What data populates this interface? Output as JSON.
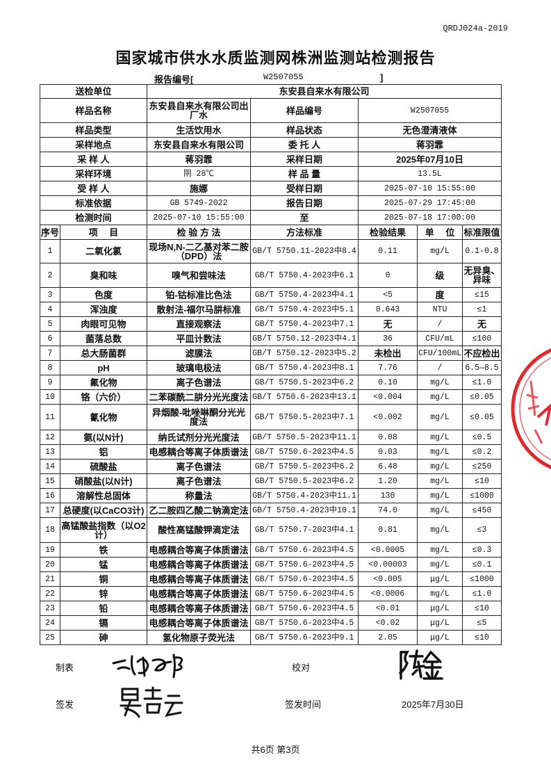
{
  "doc_code": "QRDJ024a-2019",
  "title": "国家城市供水水质监测网株洲监测站检测报告",
  "report_no": {
    "label": "报告编号[",
    "value": "W2507055",
    "close": "]"
  },
  "info": {
    "sender_label": "送检单位",
    "sender": "东安县自来水有限公司",
    "sample_name_label": "样品名称",
    "sample_name": "东安县自来水有限公司出厂水",
    "sample_no_label": "样品编号",
    "sample_no": "W2507055",
    "sample_type_label": "样品类型",
    "sample_type": "生活饮用水",
    "sample_state_label": "样品状态",
    "sample_state": "无色澄清液体",
    "site_label": "采样地点",
    "site": "东安县自来水有限公司",
    "client_label": "委 托 人",
    "client": "蒋羽霏",
    "sampler_label": "采 样 人",
    "sampler": "蒋羽霏",
    "sample_date_label": "采样日期",
    "sample_date": "2025年07月10日",
    "env_label": "采样环境",
    "env": "阴 28℃",
    "qty_label": "样 品 量",
    "qty": "13.5L",
    "receiver_label": "受 样 人",
    "receiver": "施娜",
    "receive_date_label": "受样日期",
    "receive_date": "2025-07-10 15:55:00",
    "standard_label": "标准依据",
    "standard": "GB 5749-2022",
    "report_date_label": "报告日期",
    "report_date": "2025-07-29 17:45:00",
    "test_time_label": "检测时间",
    "test_start": "2025-07-10 15:55:00",
    "to": "至",
    "test_end": "2025-07-18 17:00:00"
  },
  "columns": [
    "序号",
    "项　 目",
    "检 验 方 法",
    "方法标准",
    "检验结果",
    "单　 位",
    "标准限值"
  ],
  "rows": [
    [
      "1",
      "二氧化氯",
      "现场N,N-二乙基对苯二胺（DPD）法",
      "GB/T 5750.11-2023中8.4",
      "0.11",
      "mg/L",
      "0.1-0.8"
    ],
    [
      "2",
      "臭和味",
      "嗅气和尝味法",
      "GB/T 5750.4-2023中6.1",
      "0",
      "级",
      "无异臭、异味"
    ],
    [
      "3",
      "色度",
      "铂-钴标准比色法",
      "GB/T 5750.4-2023中4.1",
      "<5",
      "度",
      "≤15"
    ],
    [
      "4",
      "浑浊度",
      "散射法-福尔马肼标准",
      "GB/T 5750.4-2023中5.1",
      "0.643",
      "NTU",
      "≤1"
    ],
    [
      "5",
      "肉眼可见物",
      "直接观察法",
      "GB/T 5750.4-2023中7.1",
      "无",
      "/",
      "无"
    ],
    [
      "6",
      "菌落总数",
      "平皿计数法",
      "GB/T 5750.12-2023中4.1",
      "36",
      "CFU/mL",
      "≤100"
    ],
    [
      "7",
      "总大肠菌群",
      "滤膜法",
      "GB/T 5750.12-2023中5.2",
      "未检出",
      "CFU/100mL",
      "不应检出"
    ],
    [
      "8",
      "pH",
      "玻璃电极法",
      "GB/T 5750.4-2023中8.1",
      "7.76",
      "/",
      "6.5—8.5"
    ],
    [
      "9",
      "氟化物",
      "离子色谱法",
      "GB/T 5750.5-2023中6.2",
      "0.10",
      "mg/L",
      "≤1.0"
    ],
    [
      "10",
      "铬（六价）",
      "二苯碳酰二肼分光光度法",
      "GB/T 5750.6-2023中13.1",
      "<0.004",
      "mg/L",
      "≤0.05"
    ],
    [
      "11",
      "氰化物",
      "异烟酸-吡唑啉酮分光光度法",
      "GB/T 5750.5-2023中7.1",
      "<0.002",
      "mg/L",
      "≤0.05"
    ],
    [
      "12",
      "氨(以N计)",
      "纳氏试剂分光光度法",
      "GB/T 5750.5-2023中11.1",
      "0.08",
      "mg/L",
      "≤0.5"
    ],
    [
      "13",
      "铝",
      "电感耦合等离子体质谱法",
      "GB/T 5750.6-2023中4.5",
      "0.03",
      "mg/L",
      "≤0.2"
    ],
    [
      "14",
      "硫酸盐",
      "离子色谱法",
      "GB/T 5750.5-2023中6.2",
      "6.48",
      "mg/L",
      "≤250"
    ],
    [
      "15",
      "硝酸盐(以N计)",
      "离子色谱法",
      "GB/T 5750.5-2023中6.2",
      "1.20",
      "mg/L",
      "≤10"
    ],
    [
      "16",
      "溶解性总固体",
      "称量法",
      "GB/T 5750.4-2023中11.1",
      "130",
      "mg/L",
      "≤1000"
    ],
    [
      "17",
      "总硬度(以CaCO3计)",
      "乙二胺四乙酸二钠滴定法",
      "GB/T 5750.4-2023中10.1",
      "74.0",
      "mg/L",
      "≤450"
    ],
    [
      "18",
      "高锰酸盐指数（以O2计）",
      "酸性高锰酸钾滴定法",
      "GB/T 5750.7-2023中4.1",
      "0.81",
      "mg/L",
      "≤3"
    ],
    [
      "19",
      "铁",
      "电感耦合等离子体质谱法",
      "GB/T 5750.6-2023中4.5",
      "<0.0005",
      "mg/L",
      "≤0.3"
    ],
    [
      "20",
      "锰",
      "电感耦合等离子体质谱法",
      "GB/T 5750.6-2023中4.5",
      "<0.00003",
      "mg/L",
      "≤0.1"
    ],
    [
      "21",
      "铜",
      "电感耦合等离子体质谱法",
      "GB/T 5750.6-2023中4.5",
      "<0.005",
      "μg/L",
      "≤1000"
    ],
    [
      "22",
      "锌",
      "电感耦合等离子体质谱法",
      "GB/T 5750.6-2023中4.5",
      "<0.0006",
      "mg/L",
      "≤1.0"
    ],
    [
      "23",
      "铅",
      "电感耦合等离子体质谱法",
      "GB/T 5750.6-2023中4.5",
      "<0.01",
      "μg/L",
      "≤10"
    ],
    [
      "24",
      "镉",
      "电感耦合等离子体质谱法",
      "GB/T 5750.6-2023中4.5",
      "<0.02",
      "μg/L",
      "≤5"
    ],
    [
      "25",
      "砷",
      "氢化物原子荧光法",
      "GB/T 5750.6-2023中9.1",
      "2.05",
      "μg/L",
      "≤10"
    ]
  ],
  "footer": {
    "prepared_label": "制表",
    "checked_label": "校对",
    "issued_label": "签发",
    "issue_time_label": "签发时间",
    "issue_date": "2025年7月30日",
    "page": "共6页 第3页"
  },
  "colors": {
    "stamp": "#e0282e",
    "ink": "#111111"
  }
}
